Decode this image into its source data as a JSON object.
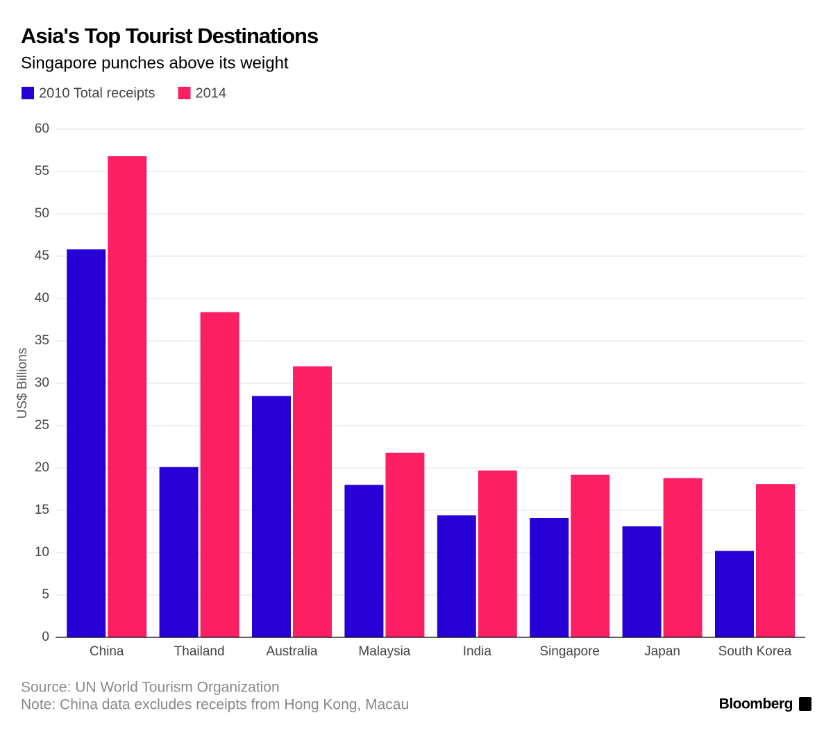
{
  "chart_data": {
    "type": "bar",
    "title": "Asia's Top Tourist Destinations",
    "subtitle": "Singapore punches above its weight",
    "y_label": "US$ Billions",
    "categories": [
      "China",
      "Thailand",
      "Australia",
      "Malaysia",
      "India",
      "Singapore",
      "Japan",
      "South Korea"
    ],
    "series": [
      {
        "name": "2010 Total receipts",
        "color": "#2800d7",
        "values": [
          45.8,
          20.1,
          28.5,
          18.0,
          14.4,
          14.1,
          13.1,
          10.2
        ]
      },
      {
        "name": "2014",
        "color": "#fd1f64",
        "values": [
          56.8,
          38.4,
          32.0,
          21.8,
          19.7,
          19.2,
          18.8,
          18.1
        ]
      }
    ],
    "ylim": [
      0,
      60
    ],
    "yticks": [
      0,
      5,
      10,
      15,
      20,
      25,
      30,
      35,
      40,
      45,
      50,
      55,
      60
    ],
    "grid": true,
    "source": "Source: UN World Tourism Organization",
    "note": "Note: China data excludes receipts from Hong Kong, Macau",
    "brand": "Bloomberg"
  }
}
